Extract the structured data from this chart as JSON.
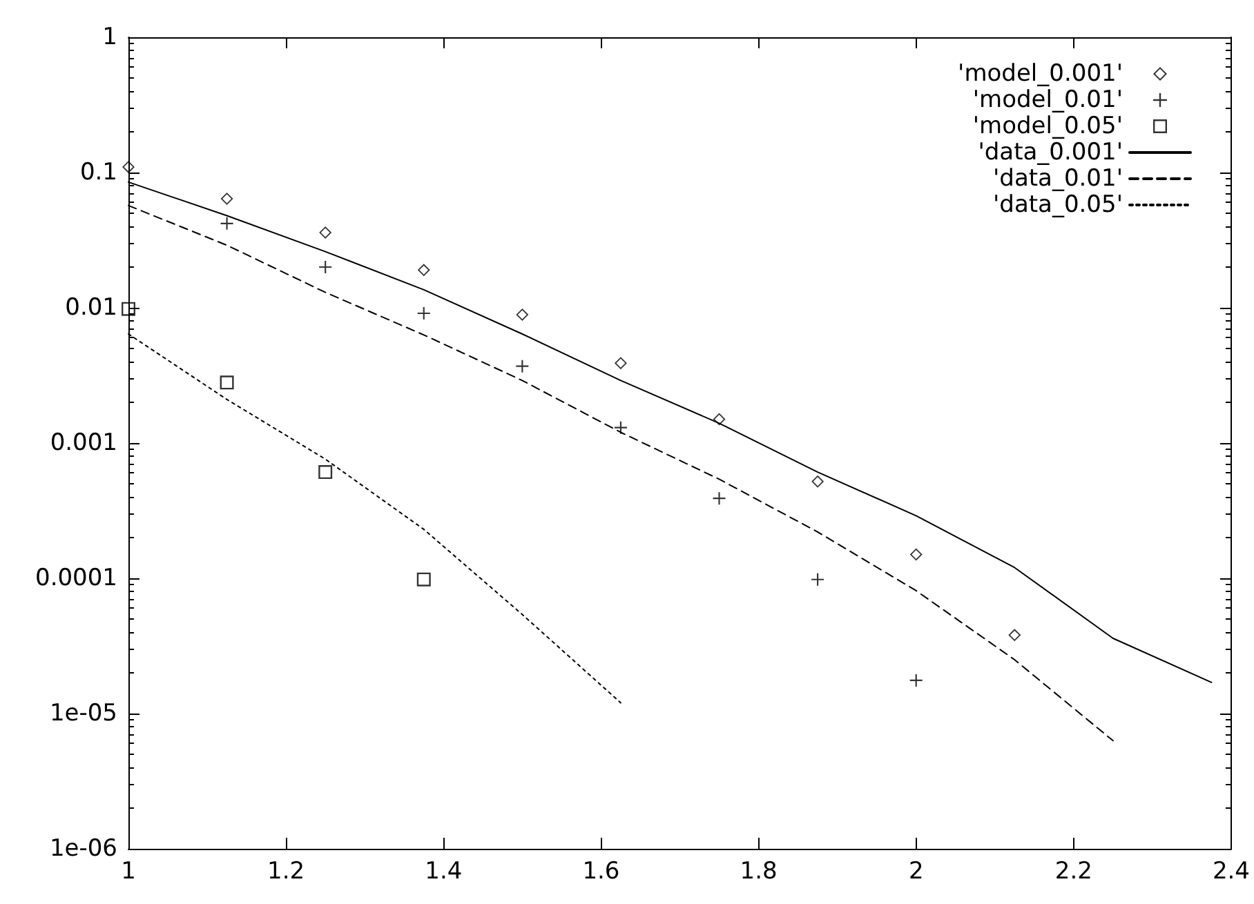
{
  "chart_data": {
    "type": "scatter",
    "log": "y",
    "legend": "top right",
    "grid": false,
    "xlim": [
      1,
      2.4
    ],
    "xticks": [
      1,
      1.2,
      1.4,
      1.6,
      1.8,
      2,
      2.2,
      2.4
    ],
    "ylim": [
      1e-06,
      1
    ],
    "yticks": [
      1,
      0.1,
      0.01,
      0.001,
      0.0001,
      {
        "value": 1e-05,
        "label": "1e-05"
      },
      {
        "value": 1e-06,
        "label": "1e-06"
      }
    ],
    "series": [
      {
        "name": "'model_0.001'",
        "marker": "diamond",
        "color": "#000000",
        "x": [
          1,
          1.125,
          1.25,
          1.375,
          1.5,
          1.625,
          1.75,
          1.875,
          2,
          2.125
        ],
        "values": [
          0.11,
          0.064,
          0.036,
          0.019,
          0.0089,
          0.0039,
          0.0015,
          0.00052,
          0.00015,
          3.8e-05
        ]
      },
      {
        "name": "'model_0.01'",
        "marker": "cross",
        "color": "#000000",
        "x": [
          1.125,
          1.25,
          1.375,
          1.5,
          1.625,
          1.75,
          1.875,
          2
        ],
        "values": [
          0.042,
          0.02,
          0.0091,
          0.0037,
          0.0013,
          0.00039,
          9.8e-05,
          1.76e-05
        ]
      },
      {
        "name": "'model_0.05'",
        "marker": "square",
        "color": "#000000",
        "x": [
          1,
          1.125,
          1.25,
          1.375
        ],
        "values": [
          0.0098,
          0.0028,
          0.00061,
          9.8e-05
        ]
      },
      {
        "name": "'data_0.001'",
        "type": "line",
        "marker": "none",
        "line_style": "solid",
        "color": "#000000",
        "x": [
          1,
          1.125,
          1.25,
          1.375,
          1.5,
          1.625,
          1.75,
          1.875,
          2,
          2.125,
          2.25,
          2.375
        ],
        "values": [
          0.085,
          0.048,
          0.026,
          0.0136,
          0.0064,
          0.0029,
          0.0014,
          0.00061,
          0.00029,
          0.00012,
          3.6e-05,
          1.7e-05
        ]
      },
      {
        "name": "'data_0.01'",
        "type": "line",
        "marker": "none",
        "line_style": "dashed",
        "color": "#000000",
        "x": [
          1,
          1.125,
          1.25,
          1.375,
          1.5,
          1.625,
          1.75,
          1.875,
          2,
          2.125,
          2.25
        ],
        "values": [
          0.057,
          0.029,
          0.013,
          0.0063,
          0.0029,
          0.0012,
          0.00054,
          0.00022,
          8.1e-05,
          2.5e-05,
          6.3e-06
        ]
      },
      {
        "name": "'data_0.05'",
        "type": "line",
        "marker": "none",
        "line_style": "dotted",
        "color": "#000000",
        "x": [
          1,
          1.125,
          1.25,
          1.375,
          1.5,
          1.625
        ],
        "values": [
          0.0064,
          0.0021,
          0.00076,
          0.00023,
          5.4e-05,
          1.2e-05
        ]
      }
    ]
  }
}
